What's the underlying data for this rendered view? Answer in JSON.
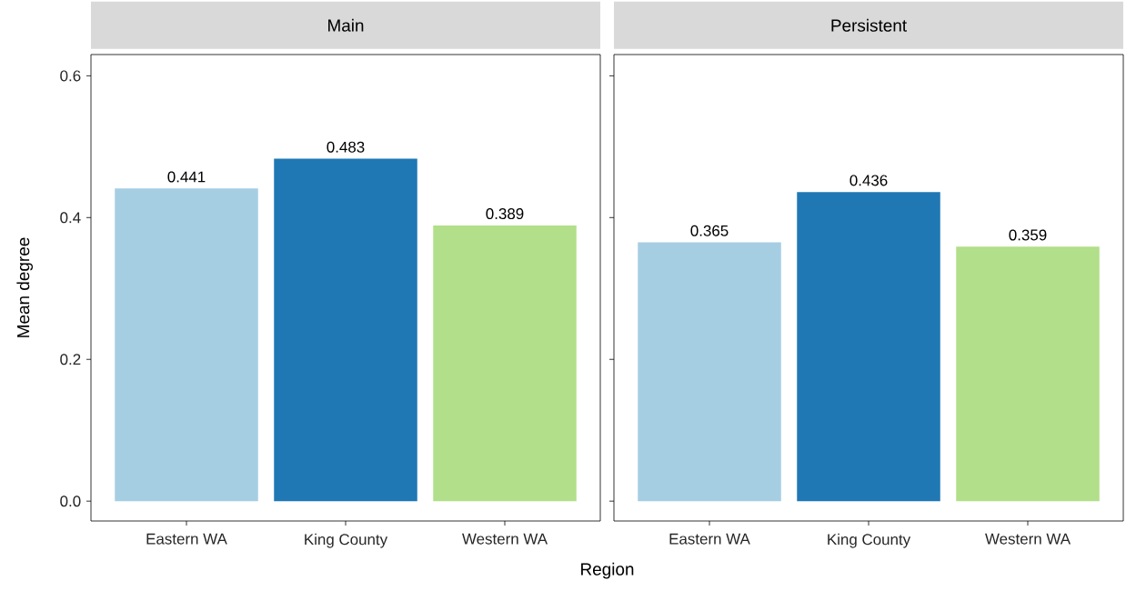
{
  "chart_data": [
    {
      "type": "bar",
      "title": "Main",
      "xlabel": "Region",
      "ylabel": "Mean degree",
      "categories": [
        "Eastern WA",
        "King County",
        "Western WA"
      ],
      "values": [
        0.441,
        0.483,
        0.389
      ],
      "colors": [
        "#a6cee3",
        "#1f78b4",
        "#b2df8a"
      ],
      "ylim": [
        -0.028,
        0.63
      ],
      "yticks": [
        {
          "value": 0,
          "label": "0.0"
        },
        {
          "value": 0.2,
          "label": "0.2"
        },
        {
          "value": 0.4,
          "label": "0.4"
        },
        {
          "value": 0.6,
          "label": "0.6"
        }
      ],
      "data_labels": true,
      "grid": false
    },
    {
      "type": "bar",
      "title": "Persistent",
      "categories": [
        "Eastern WA",
        "King County",
        "Western WA"
      ],
      "values": [
        0.365,
        0.436,
        0.359
      ],
      "colors": [
        "#a6cee3",
        "#1f78b4",
        "#b2df8a"
      ],
      "ylim": [
        -0.028,
        0.63
      ],
      "yticks": [
        {
          "value": 0,
          "label": null
        },
        {
          "value": 0.2,
          "label": null
        },
        {
          "value": 0.4,
          "label": null
        },
        {
          "value": 0.6,
          "label": null
        }
      ],
      "tick_labels": "x",
      "data_labels": true,
      "grid": false
    }
  ]
}
